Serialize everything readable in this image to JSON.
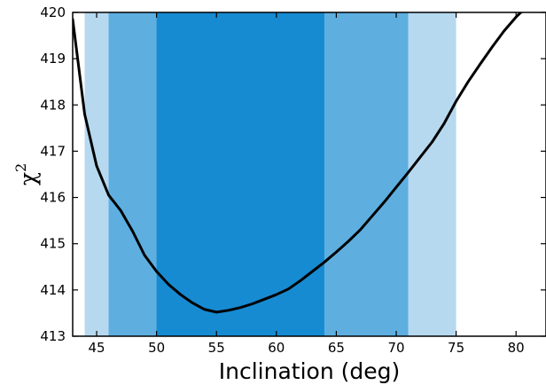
{
  "chart_data": {
    "type": "line",
    "xlabel": "Inclination (deg)",
    "ylabel": "χ",
    "ylabel_superscript": "2",
    "xlim": [
      43,
      82.5
    ],
    "ylim": [
      413,
      420
    ],
    "xticks": [
      45,
      50,
      55,
      60,
      65,
      70,
      75,
      80
    ],
    "yticks": [
      413,
      414,
      415,
      416,
      417,
      418,
      419,
      420
    ],
    "grid": false,
    "confidence_bands": [
      {
        "from": 44,
        "to": 75,
        "color": "#b6d9f0"
      },
      {
        "from": 46,
        "to": 71,
        "color": "#5eafe0"
      },
      {
        "from": 50,
        "to": 64,
        "color": "#168bd2"
      }
    ],
    "series": [
      {
        "color": "#000000",
        "x": [
          43,
          44,
          45,
          46,
          47,
          48,
          49,
          50,
          51,
          52,
          53,
          54,
          55,
          56,
          57,
          58,
          59,
          60,
          61,
          62,
          63,
          64,
          65,
          66,
          67,
          68,
          69,
          70,
          71,
          72,
          73,
          74,
          75,
          76,
          77,
          78,
          79,
          80,
          81,
          82,
          82.5
        ],
        "y": [
          419.85,
          417.8,
          416.68,
          416.05,
          415.72,
          415.27,
          414.75,
          414.4,
          414.12,
          413.9,
          413.72,
          413.58,
          413.52,
          413.56,
          413.62,
          413.7,
          413.8,
          413.9,
          414.02,
          414.2,
          414.4,
          414.6,
          414.82,
          415.05,
          415.3,
          415.6,
          415.9,
          416.22,
          416.54,
          416.87,
          417.2,
          417.6,
          418.08,
          418.5,
          418.88,
          419.25,
          419.6,
          419.9,
          420.15,
          420.35,
          420.45
        ]
      }
    ]
  }
}
